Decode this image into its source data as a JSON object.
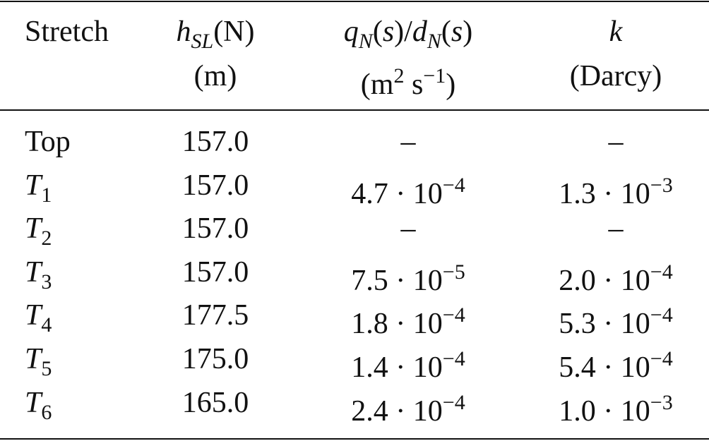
{
  "table": {
    "header": [
      [
        [
          {
            "t": "Stretch"
          }
        ]
      ],
      [
        [
          {
            "t": "h",
            "s": "i"
          },
          {
            "t": "SL",
            "s": "isub"
          },
          {
            "t": "(N)"
          }
        ],
        [
          {
            "t": "(m)"
          }
        ]
      ],
      [
        [
          {
            "t": "q",
            "s": "i"
          },
          {
            "t": "N",
            "s": "isub"
          },
          {
            "t": "("
          },
          {
            "t": "s",
            "s": "i"
          },
          {
            "t": ")/"
          },
          {
            "t": "d",
            "s": "i"
          },
          {
            "t": "N",
            "s": "isub"
          },
          {
            "t": "("
          },
          {
            "t": "s",
            "s": "i"
          },
          {
            "t": ")"
          }
        ],
        [
          {
            "t": "(m"
          },
          {
            "t": "2",
            "s": "sup"
          },
          {
            "t": " s"
          },
          {
            "t": "−1",
            "s": "sup"
          },
          {
            "t": ")"
          }
        ]
      ],
      [
        [
          {
            "t": "k",
            "s": "i"
          }
        ],
        [
          {
            "t": "(Darcy)"
          }
        ]
      ]
    ],
    "rows": [
      [
        [
          {
            "t": "Top"
          }
        ],
        [
          {
            "t": "157.0"
          }
        ],
        [
          {
            "t": "–"
          }
        ],
        [
          {
            "t": "–"
          }
        ]
      ],
      [
        [
          {
            "t": "T",
            "s": "i"
          },
          {
            "t": "1",
            "s": "sub"
          }
        ],
        [
          {
            "t": "157.0"
          }
        ],
        [
          {
            "t": "4.7 · 10"
          },
          {
            "t": "−4",
            "s": "sup"
          }
        ],
        [
          {
            "t": "1.3 · 10"
          },
          {
            "t": "−3",
            "s": "sup"
          }
        ]
      ],
      [
        [
          {
            "t": "T",
            "s": "i"
          },
          {
            "t": "2",
            "s": "sub"
          }
        ],
        [
          {
            "t": "157.0"
          }
        ],
        [
          {
            "t": "–"
          }
        ],
        [
          {
            "t": "–"
          }
        ]
      ],
      [
        [
          {
            "t": "T",
            "s": "i"
          },
          {
            "t": "3",
            "s": "sub"
          }
        ],
        [
          {
            "t": "157.0"
          }
        ],
        [
          {
            "t": "7.5 · 10"
          },
          {
            "t": "−5",
            "s": "sup"
          }
        ],
        [
          {
            "t": "2.0 · 10"
          },
          {
            "t": "−4",
            "s": "sup"
          }
        ]
      ],
      [
        [
          {
            "t": "T",
            "s": "i"
          },
          {
            "t": "4",
            "s": "sub"
          }
        ],
        [
          {
            "t": "177.5"
          }
        ],
        [
          {
            "t": "1.8 · 10"
          },
          {
            "t": "−4",
            "s": "sup"
          }
        ],
        [
          {
            "t": "5.3 · 10"
          },
          {
            "t": "−4",
            "s": "sup"
          }
        ]
      ],
      [
        [
          {
            "t": "T",
            "s": "i"
          },
          {
            "t": "5",
            "s": "sub"
          }
        ],
        [
          {
            "t": "175.0"
          }
        ],
        [
          {
            "t": "1.4 · 10"
          },
          {
            "t": "−4",
            "s": "sup"
          }
        ],
        [
          {
            "t": "5.4 · 10"
          },
          {
            "t": "−4",
            "s": "sup"
          }
        ]
      ],
      [
        [
          {
            "t": "T",
            "s": "i"
          },
          {
            "t": "6",
            "s": "sub"
          }
        ],
        [
          {
            "t": "165.0"
          }
        ],
        [
          {
            "t": "2.4 · 10"
          },
          {
            "t": "−4",
            "s": "sup"
          }
        ],
        [
          {
            "t": "1.0 · 10"
          },
          {
            "t": "−3",
            "s": "sup"
          }
        ]
      ]
    ]
  }
}
